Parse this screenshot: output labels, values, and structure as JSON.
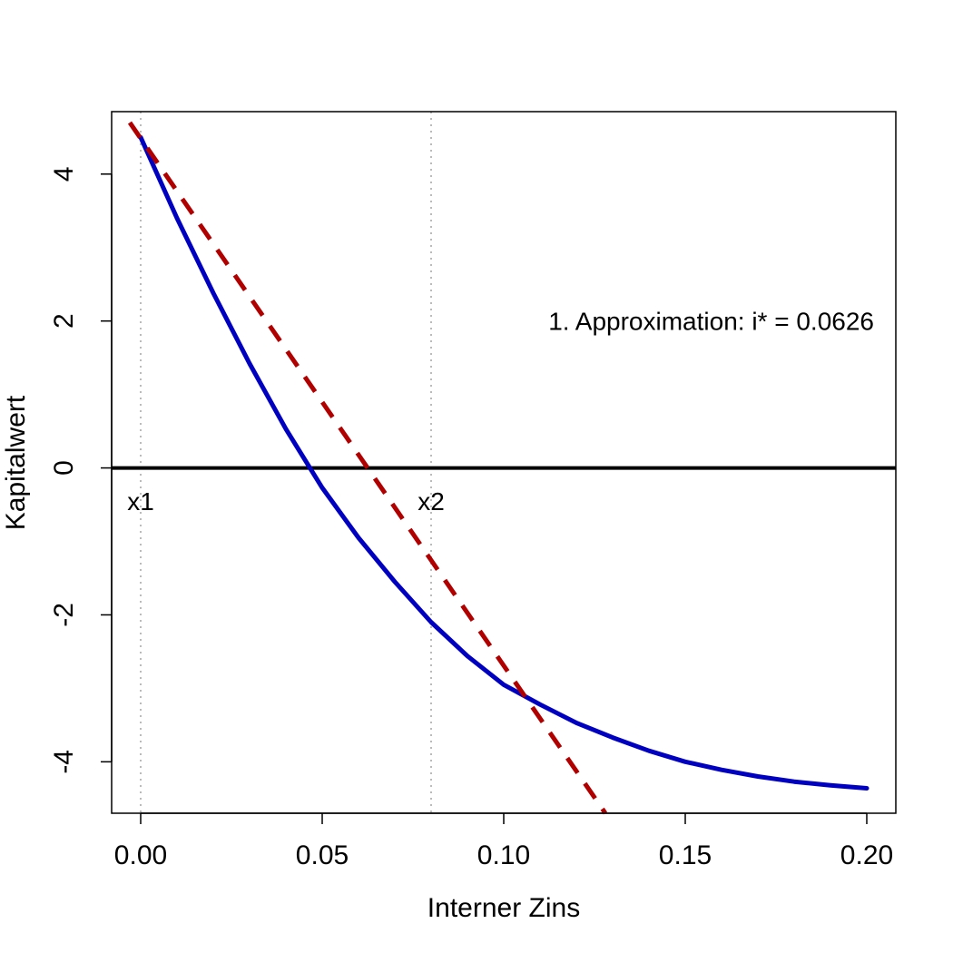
{
  "chart_data": {
    "type": "line",
    "title": "",
    "xlabel": "Interner Zins",
    "ylabel": "Kapitalwert",
    "xlim": [
      -0.008,
      0.208
    ],
    "ylim": [
      -4.7,
      4.85
    ],
    "x_ticks": [
      0.0,
      0.05,
      0.1,
      0.15,
      0.2
    ],
    "x_tick_labels": [
      "0.00",
      "0.05",
      "0.10",
      "0.15",
      "0.20"
    ],
    "y_ticks": [
      -4,
      -2,
      0,
      2,
      4
    ],
    "y_tick_labels": [
      "-4",
      "-2",
      "0",
      "2",
      "4"
    ],
    "grid": false,
    "legend": "none",
    "series": [
      {
        "style": "solid",
        "color": "#0000c0",
        "x": [
          0.0,
          0.01,
          0.02,
          0.03,
          0.04,
          0.05,
          0.06,
          0.07,
          0.08,
          0.09,
          0.1,
          0.11,
          0.12,
          0.13,
          0.14,
          0.15,
          0.16,
          0.17,
          0.18,
          0.19,
          0.2
        ],
        "y": [
          4.5,
          3.4,
          2.38,
          1.42,
          0.53,
          -0.27,
          -0.95,
          -1.55,
          -2.1,
          -2.56,
          -2.95,
          -3.22,
          -3.47,
          -3.67,
          -3.85,
          -4.0,
          -4.11,
          -4.2,
          -4.27,
          -4.32,
          -4.36
        ]
      },
      {
        "style": "dashed",
        "color": "#b00000",
        "x": [
          -0.003,
          0.128
        ],
        "y": [
          4.7,
          -4.7
        ]
      }
    ],
    "hlines": [
      {
        "y": 0,
        "color": "#000000"
      }
    ],
    "vlines": [
      {
        "x": 0.0,
        "color": "#bbbbbb",
        "style": "dotted"
      },
      {
        "x": 0.08,
        "color": "#bbbbbb",
        "style": "dotted"
      }
    ],
    "annotations": [
      {
        "text": "x1",
        "x": 0.0,
        "y": -0.45
      },
      {
        "text": "x2",
        "x": 0.08,
        "y": -0.45
      },
      {
        "text": "1. Approximation: i* = 0.0626",
        "x": 0.2,
        "y": 2.0
      }
    ]
  }
}
